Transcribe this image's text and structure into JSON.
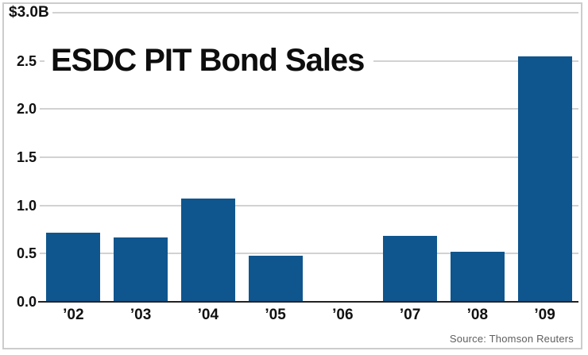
{
  "chart_data": {
    "type": "bar",
    "title": "ESDC PIT Bond Sales",
    "categories": [
      "’02",
      "’03",
      "’04",
      "’05",
      "’06",
      "’07",
      "’08",
      "’09"
    ],
    "values": [
      0.72,
      0.67,
      1.07,
      0.48,
      0,
      0.68,
      0.52,
      2.55
    ],
    "ylim": [
      0,
      3.0
    ],
    "ytick_interval": 0.5,
    "ytick_labels": [
      "0.0",
      "0.5",
      "1.0",
      "1.5",
      "2.0",
      "2.5",
      "$3.0B"
    ],
    "grid": true,
    "legend": false,
    "bar_color": "#0f568e",
    "gridline_color": "#d2d2d2",
    "axis_color": "#222222",
    "label_color": "#111111"
  },
  "footer": {
    "source": "Source: Thomson Reuters"
  },
  "frame": {
    "border_color": "#cccccc",
    "background_color": "#ffffff"
  }
}
